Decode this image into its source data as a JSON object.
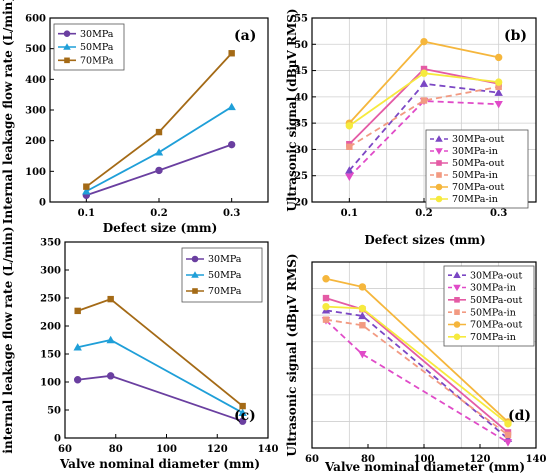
{
  "chart_data": [
    {
      "panel": "(a)",
      "type": "line",
      "xlabel": "Defect size (mm)",
      "ylabel": "Internal leakage flow rate (L/min)",
      "x": [
        0.1,
        0.2,
        0.3
      ],
      "xticks": [
        "0.1",
        "0.2",
        "0.3"
      ],
      "xlim": [
        0.05,
        0.35
      ],
      "ylim": [
        0,
        600
      ],
      "yticks": [
        0,
        100,
        200,
        300,
        400,
        500,
        600
      ],
      "grid": false,
      "legend": "top-left",
      "series": [
        {
          "name": "30MPa",
          "color": "#6a3fa0",
          "marker": "circle",
          "values": [
            22,
            103,
            187
          ]
        },
        {
          "name": "50MPa",
          "color": "#1f9fd8",
          "marker": "triangle",
          "values": [
            35,
            162,
            310
          ]
        },
        {
          "name": "70MPa",
          "color": "#a46a16",
          "marker": "square",
          "values": [
            50,
            228,
            485
          ]
        }
      ]
    },
    {
      "panel": "(b)",
      "type": "line",
      "xlabel": "Defect sizes (mm)",
      "ylabel": "Ultrasonic signal (dBμV RMS)",
      "x": [
        0.1,
        0.2,
        0.3
      ],
      "xticks": [
        "0.1",
        "0.2",
        "0.3"
      ],
      "xlim": [
        0.05,
        0.35
      ],
      "ylim": [
        20,
        55
      ],
      "yticks": [
        20,
        25,
        30,
        35,
        40,
        45,
        50,
        55
      ],
      "grid": true,
      "legend": "bottom-right",
      "series": [
        {
          "name": "30MPa-out",
          "color": "#7b47c4",
          "marker": "triangle",
          "dash": true,
          "values": [
            26.0,
            42.5,
            40.8
          ]
        },
        {
          "name": "30MPa-in",
          "color": "#e04bc8",
          "marker": "triangle-down",
          "dash": true,
          "values": [
            24.8,
            39.2,
            38.6
          ]
        },
        {
          "name": "50MPa-out",
          "color": "#e45ba5",
          "marker": "square",
          "dash": false,
          "values": [
            31.0,
            45.3,
            42.5
          ]
        },
        {
          "name": "50MPa-in",
          "color": "#f29a82",
          "marker": "square",
          "dash": true,
          "values": [
            30.5,
            39.3,
            41.9
          ]
        },
        {
          "name": "70MPa-out",
          "color": "#f5b63c",
          "marker": "circle",
          "dash": false,
          "values": [
            35.0,
            50.5,
            47.5
          ]
        },
        {
          "name": "70MPa-in",
          "color": "#f6ea3e",
          "marker": "circle",
          "dash": false,
          "values": [
            34.5,
            44.5,
            42.8
          ]
        }
      ]
    },
    {
      "panel": "(c)",
      "type": "line",
      "xlabel": "Valve nominal diameter (mm)",
      "ylabel": "internal leakage flow rate (L/min)",
      "x": [
        65,
        78,
        130
      ],
      "xticks": [
        "60",
        "80",
        "100",
        "120",
        "140"
      ],
      "xlim": [
        60,
        140
      ],
      "ylim": [
        0,
        350
      ],
      "yticks": [
        0,
        50,
        100,
        150,
        200,
        250,
        300,
        350
      ],
      "grid": false,
      "legend": "top-right",
      "series": [
        {
          "name": "30MPa",
          "color": "#6a3fa0",
          "marker": "circle",
          "values": [
            104,
            111,
            30
          ]
        },
        {
          "name": "50MPa",
          "color": "#1f9fd8",
          "marker": "triangle",
          "values": [
            162,
            175,
            45
          ]
        },
        {
          "name": "70MPa",
          "color": "#a46a16",
          "marker": "square",
          "values": [
            227,
            248,
            57
          ]
        }
      ]
    },
    {
      "panel": "(d)",
      "type": "line",
      "xlabel": "Valve nominal diameter (mm)",
      "ylabel": "Ultrasonic signal (dBμV RMS)",
      "x": [
        65,
        78,
        130
      ],
      "xticks": [
        "60",
        "80",
        "100",
        "120",
        "140"
      ],
      "xlim": [
        60,
        140
      ],
      "ylim": [
        5,
        55
      ],
      "yticks": [],
      "grid": true,
      "legend": "top-right",
      "series": [
        {
          "name": "30MPa-out",
          "color": "#7b47c4",
          "marker": "triangle",
          "dash": true,
          "values": [
            42.0,
            40.5,
            7.5
          ]
        },
        {
          "name": "30MPa-in",
          "color": "#e04bc8",
          "marker": "triangle-down",
          "dash": true,
          "values": [
            39.3,
            30.2,
            6.5
          ]
        },
        {
          "name": "50MPa-out",
          "color": "#e45ba5",
          "marker": "square",
          "dash": false,
          "values": [
            45.3,
            42.3,
            9.2
          ]
        },
        {
          "name": "50MPa-in",
          "color": "#f29a82",
          "marker": "square",
          "dash": true,
          "values": [
            39.5,
            38.0,
            8.5
          ]
        },
        {
          "name": "70MPa-out",
          "color": "#f5b63c",
          "marker": "circle",
          "dash": false,
          "values": [
            50.5,
            48.3,
            12.0
          ]
        },
        {
          "name": "70MPa-in",
          "color": "#f6ea3e",
          "marker": "circle",
          "dash": false,
          "values": [
            43.0,
            42.5,
            11.5
          ]
        }
      ]
    }
  ]
}
